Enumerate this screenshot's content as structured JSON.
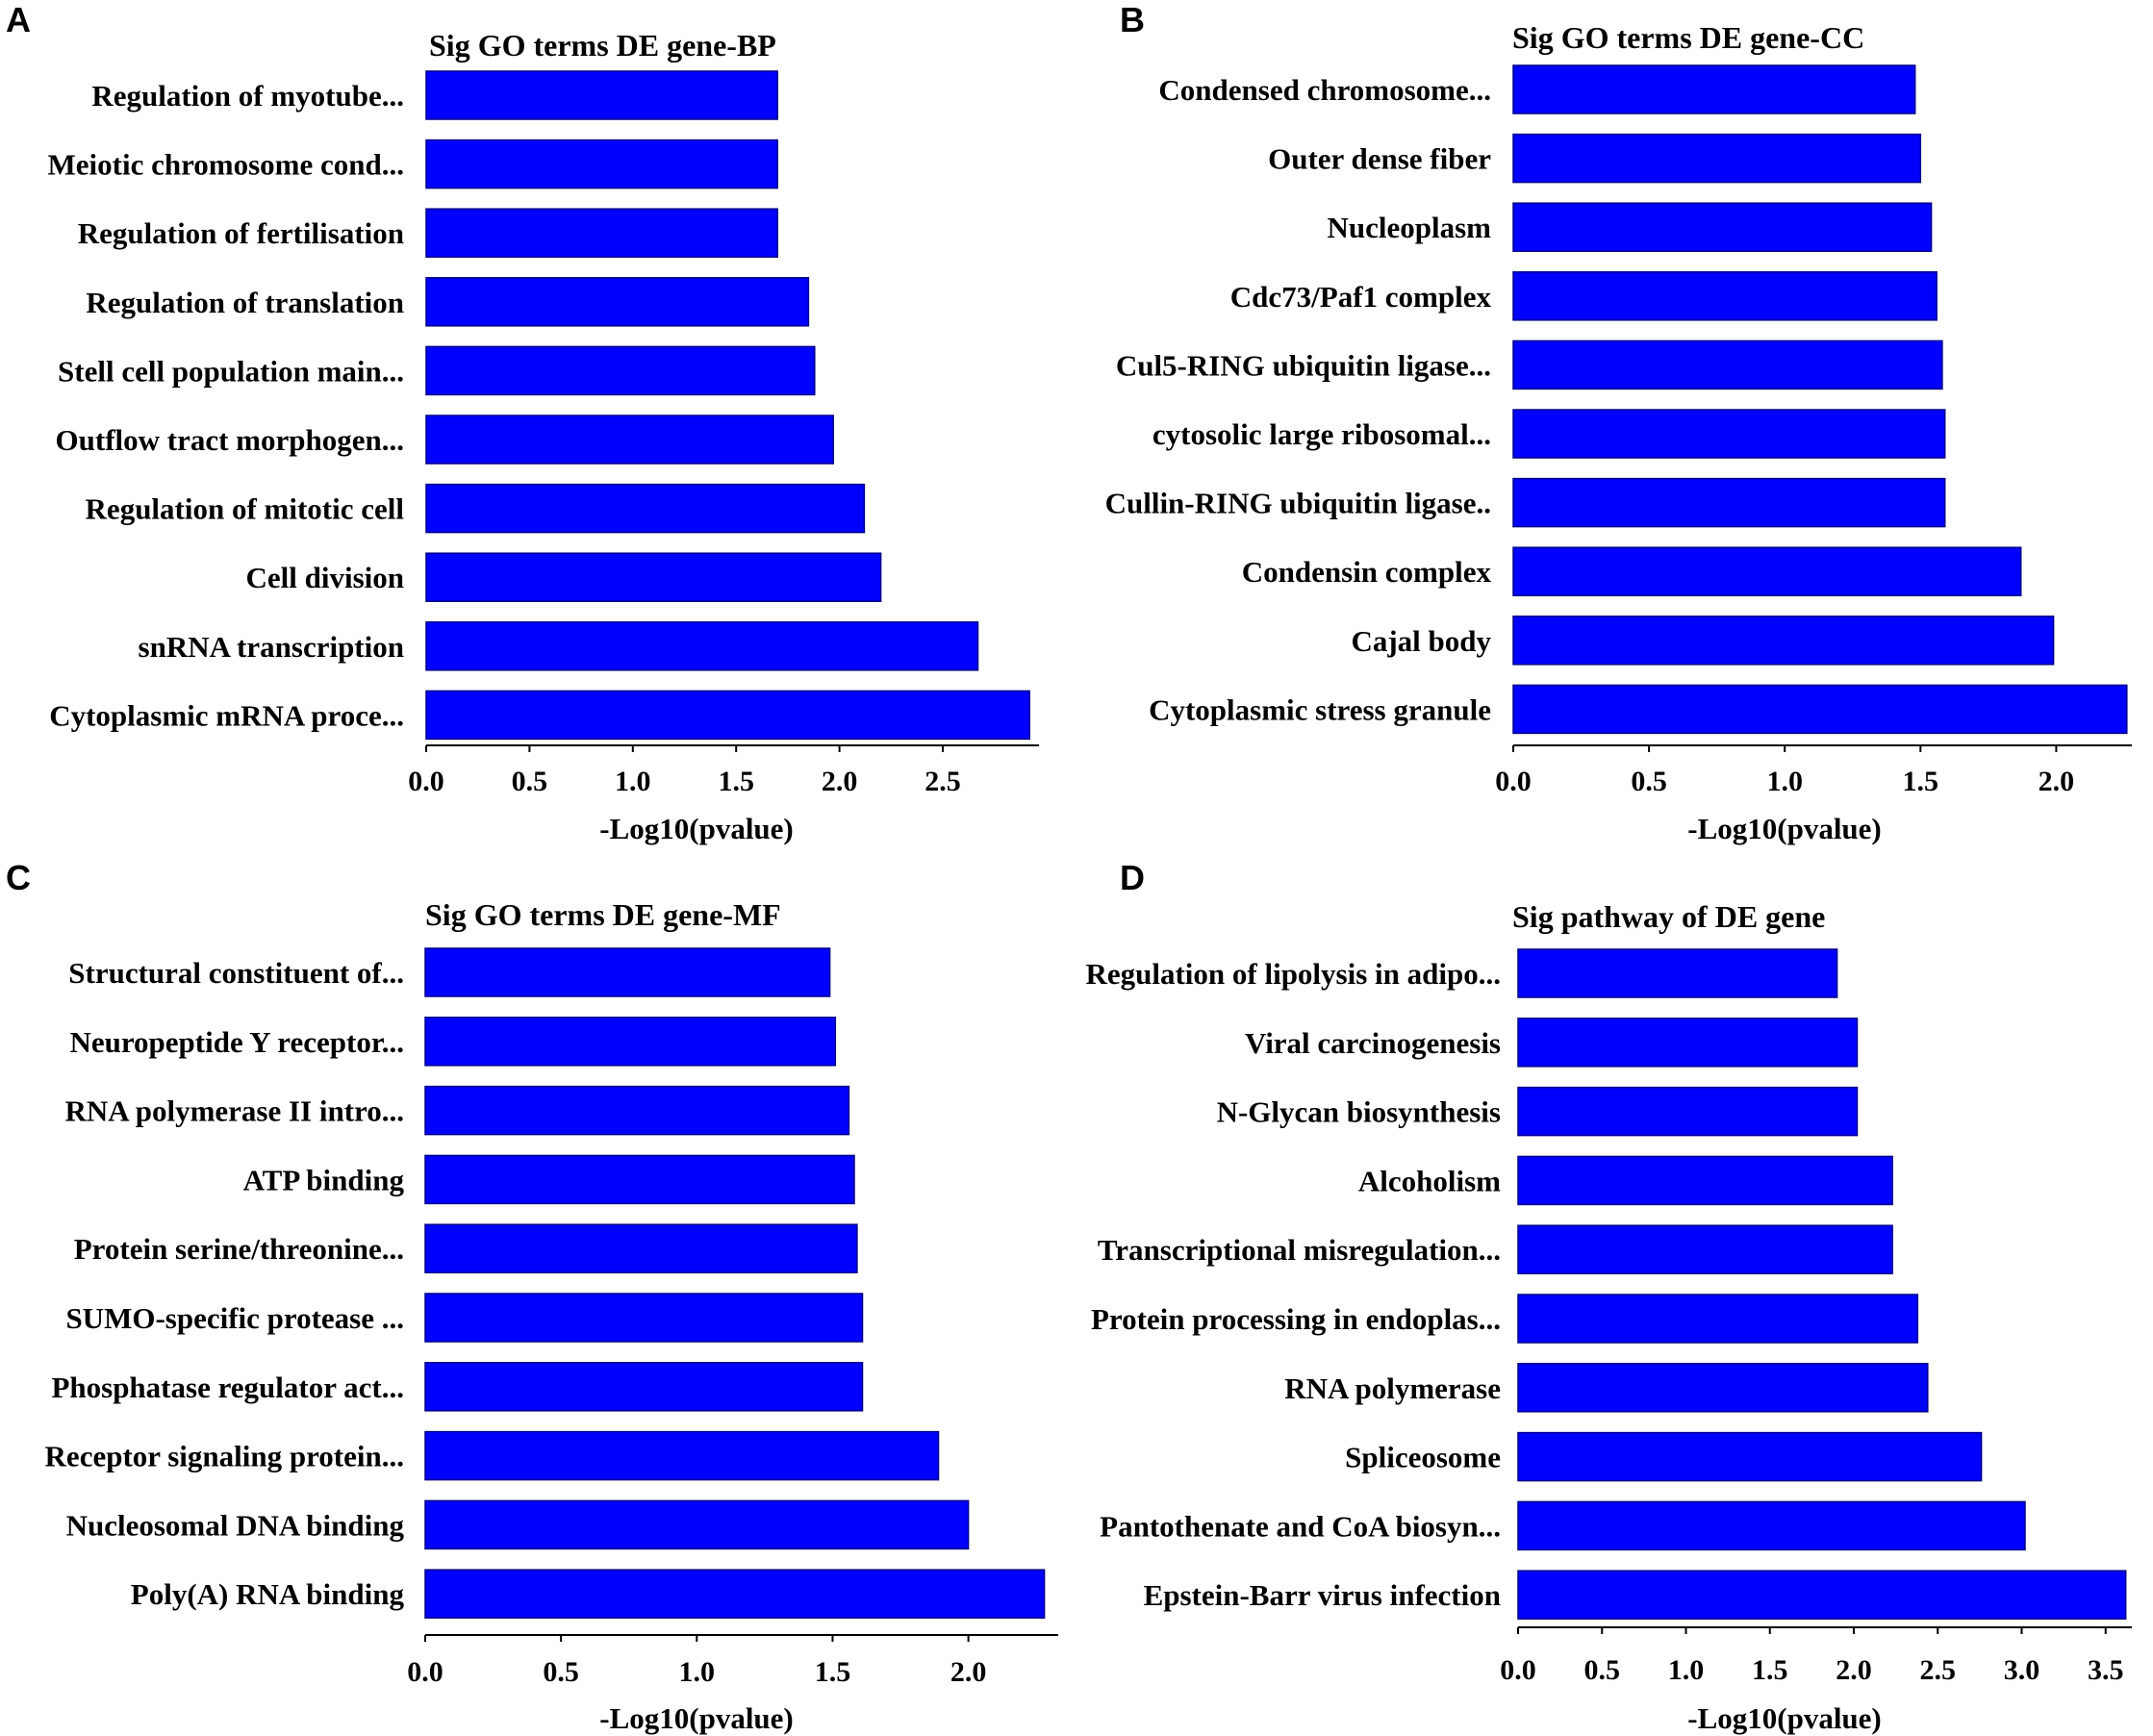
{
  "chart_data": [
    {
      "panel": "A",
      "type": "bar",
      "orientation": "horizontal",
      "title": "Sig GO terms DE gene-BP",
      "xlabel": "-Log10(pvalue)",
      "ylabel": "",
      "xlim": [
        0,
        2.95
      ],
      "xticks": [
        "0.0",
        "0.5",
        "1.0",
        "1.5",
        "2.0",
        "2.5"
      ],
      "categories": [
        "Regulation of myotube...",
        "Meiotic chromosome cond...",
        "Regulation of fertilisation",
        "Regulation of translation",
        "Stell cell population main...",
        "Outflow tract morphogen...",
        "Regulation of mitotic cell",
        "Cell division",
        "snRNA transcription",
        "Cytoplasmic mRNA proce..."
      ],
      "values": [
        1.7,
        1.7,
        1.7,
        1.85,
        1.88,
        1.97,
        2.12,
        2.2,
        2.67,
        2.92
      ]
    },
    {
      "panel": "B",
      "type": "bar",
      "orientation": "horizontal",
      "title": "Sig GO terms DE gene-CC",
      "xlabel": "-Log10(pvalue)",
      "ylabel": "",
      "xlim": [
        0,
        2.3
      ],
      "xticks": [
        "0.0",
        "0.5",
        "1.0",
        "1.5",
        "2.0"
      ],
      "categories": [
        "Condensed chromosome...",
        "Outer dense fiber",
        "Nucleoplasm",
        "Cdc73/Paf1 complex",
        "Cul5-RING ubiquitin ligase...",
        "cytosolic large ribosomal...",
        "Cullin-RING ubiquitin ligase..",
        "Condensin complex",
        "Cajal body",
        "Cytoplasmic stress granule"
      ],
      "values": [
        1.48,
        1.5,
        1.54,
        1.56,
        1.58,
        1.59,
        1.59,
        1.87,
        1.99,
        2.26
      ]
    },
    {
      "panel": "C",
      "type": "bar",
      "orientation": "horizontal",
      "title": "Sig GO terms DE gene-MF",
      "xlabel": "-Log10(pvalue)",
      "ylabel": "",
      "xlim": [
        0,
        2.3
      ],
      "xticks": [
        "0.0",
        "0.5",
        "1.0",
        "1.5",
        "2.0"
      ],
      "categories": [
        "Structural constituent of...",
        "Neuropeptide Y receptor...",
        "RNA polymerase II intro...",
        "ATP binding",
        "Protein serine/threonine...",
        "SUMO-specific protease ...",
        "Phosphatase regulator act...",
        "Receptor signaling protein...",
        "Nucleosomal DNA binding",
        "Poly(A) RNA binding"
      ],
      "values": [
        1.49,
        1.51,
        1.56,
        1.58,
        1.59,
        1.61,
        1.61,
        1.89,
        2.0,
        2.28
      ]
    },
    {
      "panel": "D",
      "type": "bar",
      "orientation": "horizontal",
      "title": "Sig pathway of DE gene",
      "xlabel": "-Log10(pvalue)",
      "ylabel": "",
      "xlim": [
        0,
        3.65
      ],
      "xticks": [
        "0.0",
        "0.5",
        "1.0",
        "1.5",
        "2.0",
        "2.5",
        "3.0",
        "3.5"
      ],
      "categories": [
        "Regulation of lipolysis in adipo...",
        "Viral carcinogenesis",
        "N-Glycan biosynthesis",
        "Alcoholism",
        "Transcriptional misregulation...",
        "Protein processing in endoplas...",
        "RNA polymerase",
        "Spliceosome",
        "Pantothenate and CoA biosyn...",
        "Epstein-Barr virus infection"
      ],
      "values": [
        1.9,
        2.02,
        2.02,
        2.23,
        2.23,
        2.38,
        2.44,
        2.76,
        3.02,
        3.62
      ]
    }
  ]
}
